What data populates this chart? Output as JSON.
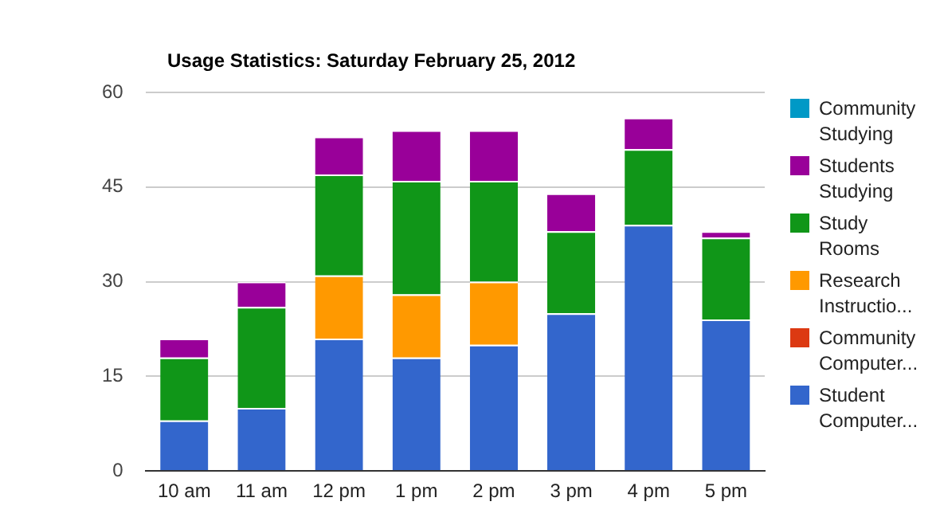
{
  "chart_data": {
    "type": "bar",
    "title": "Usage Statistics: Saturday February 25, 2012",
    "categories": [
      "10 am",
      "11 am",
      "12 pm",
      "1 pm",
      "2 pm",
      "3 pm",
      "4 pm",
      "5 pm"
    ],
    "stacked": true,
    "ylim": [
      0,
      60
    ],
    "yticks": [
      0,
      15,
      30,
      45,
      60
    ],
    "grid": "y",
    "legend": "right",
    "series": [
      {
        "name": "Student Computer...",
        "color": "#3366cc",
        "values": [
          8,
          10,
          21,
          18,
          20,
          25,
          39,
          24
        ]
      },
      {
        "name": "Community Computer...",
        "color": "#dc3912",
        "values": [
          0,
          0,
          0,
          0,
          0,
          0,
          0,
          0
        ]
      },
      {
        "name": "Research Instructio...",
        "color": "#ff9900",
        "values": [
          0,
          0,
          10,
          10,
          10,
          0,
          0,
          0
        ]
      },
      {
        "name": "Study Rooms",
        "color": "#109618",
        "values": [
          10,
          16,
          16,
          18,
          16,
          13,
          12,
          13
        ]
      },
      {
        "name": "Students Studying",
        "color": "#990099",
        "values": [
          3,
          4,
          6,
          8,
          8,
          6,
          5,
          1
        ]
      },
      {
        "name": "Community Studying",
        "color": "#0099c6",
        "values": [
          0,
          0,
          0,
          0,
          0,
          0,
          0,
          0
        ]
      }
    ]
  }
}
